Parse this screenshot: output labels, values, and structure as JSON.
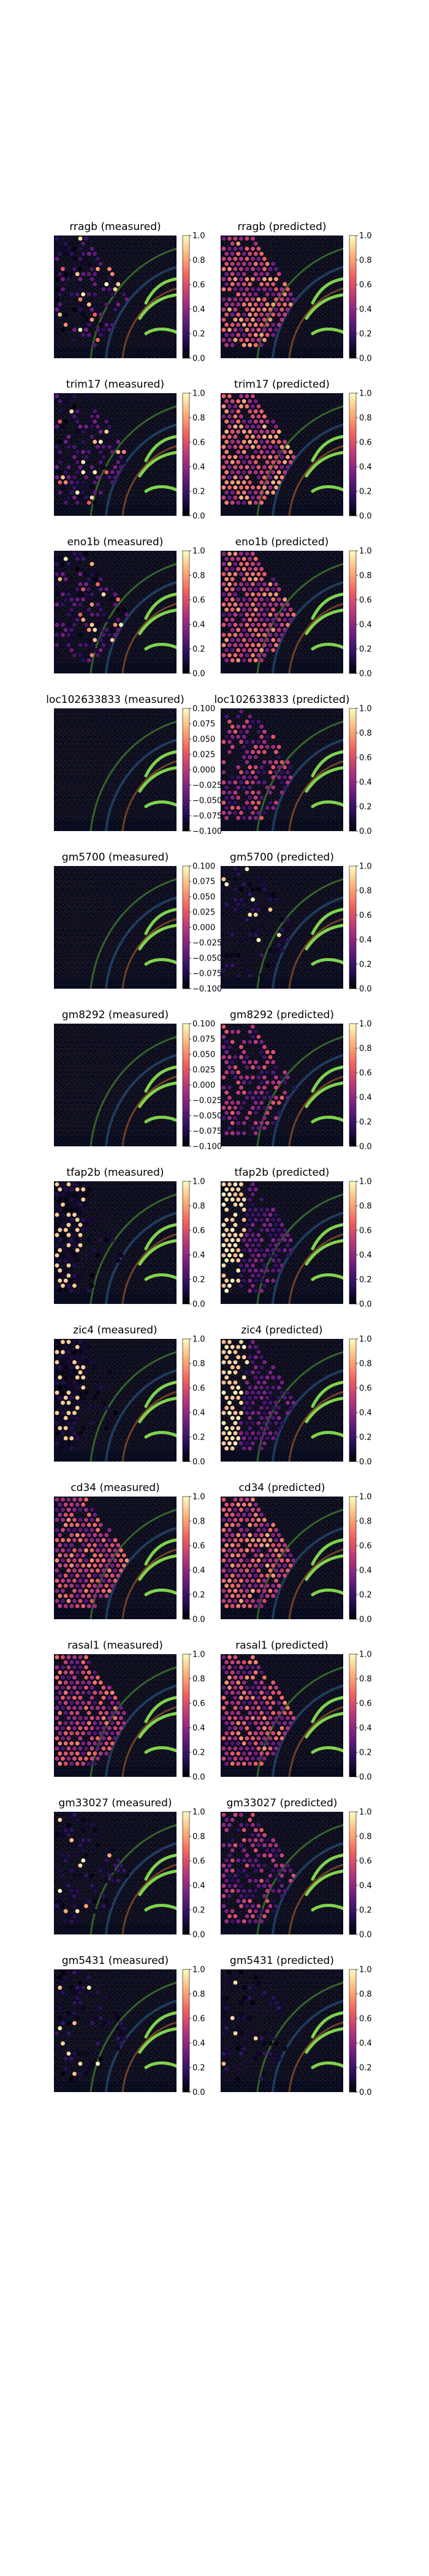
{
  "colormaps": {
    "gene_expression": [
      "#000004",
      "#2c115f",
      "#721f81",
      "#b73779",
      "#f1605d",
      "#feb078",
      "#fcfdbf"
    ],
    "spot_outline": "#a86a3a",
    "tissue_background": "#08091e",
    "tissue_texture": "#2a6a3c",
    "hippocampus_highlight": "#7ed84f"
  },
  "chart_data": [
    {
      "type": "heatmap",
      "title": "rragb (measured)",
      "colorbar": {
        "range": [
          0,
          1
        ],
        "ticks": [
          "0.0",
          "0.2",
          "0.4",
          "0.6",
          "0.8",
          "1.0"
        ]
      }
    },
    {
      "type": "heatmap",
      "title": "rragb (predicted)",
      "colorbar": {
        "range": [
          0,
          1
        ],
        "ticks": [
          "0.0",
          "0.2",
          "0.4",
          "0.6",
          "0.8",
          "1.0"
        ]
      }
    },
    {
      "type": "heatmap",
      "title": "trim17 (measured)",
      "colorbar": {
        "range": [
          0,
          1
        ],
        "ticks": [
          "0.0",
          "0.2",
          "0.4",
          "0.6",
          "0.8",
          "1.0"
        ]
      }
    },
    {
      "type": "heatmap",
      "title": "trim17 (predicted)",
      "colorbar": {
        "range": [
          0,
          1
        ],
        "ticks": [
          "0.0",
          "0.2",
          "0.4",
          "0.6",
          "0.8",
          "1.0"
        ]
      }
    },
    {
      "type": "heatmap",
      "title": "eno1b (measured)",
      "colorbar": {
        "range": [
          0,
          1
        ],
        "ticks": [
          "0.0",
          "0.2",
          "0.4",
          "0.6",
          "0.8",
          "1.0"
        ]
      }
    },
    {
      "type": "heatmap",
      "title": "eno1b (predicted)",
      "colorbar": {
        "range": [
          0,
          1
        ],
        "ticks": [
          "0.0",
          "0.2",
          "0.4",
          "0.6",
          "0.8",
          "1.0"
        ]
      }
    },
    {
      "type": "heatmap",
      "title": "loc102633833 (measured)",
      "colorbar": {
        "range": [
          -0.1,
          0.1
        ],
        "ticks": [
          "0.100",
          "0.075",
          "0.050",
          "0.025",
          "0.000",
          "−0.025",
          "−0.050",
          "−0.075",
          "−0.100"
        ]
      }
    },
    {
      "type": "heatmap",
      "title": "loc102633833 (predicted)",
      "colorbar": {
        "range": [
          0,
          1
        ],
        "ticks": [
          "0.0",
          "0.2",
          "0.4",
          "0.6",
          "0.8",
          "1.0"
        ]
      }
    },
    {
      "type": "heatmap",
      "title": "gm5700 (measured)",
      "colorbar": {
        "range": [
          -0.1,
          0.1
        ],
        "ticks": [
          "0.100",
          "0.075",
          "0.050",
          "0.025",
          "0.000",
          "−0.025",
          "−0.050",
          "−0.075",
          "−0.100"
        ]
      }
    },
    {
      "type": "heatmap",
      "title": "gm5700 (predicted)",
      "colorbar": {
        "range": [
          0,
          1
        ],
        "ticks": [
          "0.0",
          "0.2",
          "0.4",
          "0.6",
          "0.8",
          "1.0"
        ]
      }
    },
    {
      "type": "heatmap",
      "title": "gm8292 (measured)",
      "colorbar": {
        "range": [
          -0.1,
          0.1
        ],
        "ticks": [
          "0.100",
          "0.075",
          "0.050",
          "0.025",
          "0.000",
          "−0.025",
          "−0.050",
          "−0.075",
          "−0.100"
        ]
      }
    },
    {
      "type": "heatmap",
      "title": "gm8292 (predicted)",
      "colorbar": {
        "range": [
          0,
          1
        ],
        "ticks": [
          "0.0",
          "0.2",
          "0.4",
          "0.6",
          "0.8",
          "1.0"
        ]
      }
    },
    {
      "type": "heatmap",
      "title": "tfap2b (measured)",
      "colorbar": {
        "range": [
          0,
          1
        ],
        "ticks": [
          "0.0",
          "0.2",
          "0.4",
          "0.6",
          "0.8",
          "1.0"
        ]
      }
    },
    {
      "type": "heatmap",
      "title": "tfap2b (predicted)",
      "colorbar": {
        "range": [
          0,
          1
        ],
        "ticks": [
          "0.0",
          "0.2",
          "0.4",
          "0.6",
          "0.8",
          "1.0"
        ]
      }
    },
    {
      "type": "heatmap",
      "title": "zic4 (measured)",
      "colorbar": {
        "range": [
          0,
          1
        ],
        "ticks": [
          "0.0",
          "0.2",
          "0.4",
          "0.6",
          "0.8",
          "1.0"
        ]
      }
    },
    {
      "type": "heatmap",
      "title": "zic4 (predicted)",
      "colorbar": {
        "range": [
          0,
          1
        ],
        "ticks": [
          "0.0",
          "0.2",
          "0.4",
          "0.6",
          "0.8",
          "1.0"
        ]
      }
    },
    {
      "type": "heatmap",
      "title": "cd34 (measured)",
      "colorbar": {
        "range": [
          0,
          1
        ],
        "ticks": [
          "0.0",
          "0.2",
          "0.4",
          "0.6",
          "0.8",
          "1.0"
        ]
      }
    },
    {
      "type": "heatmap",
      "title": "cd34 (predicted)",
      "colorbar": {
        "range": [
          0,
          1
        ],
        "ticks": [
          "0.0",
          "0.2",
          "0.4",
          "0.6",
          "0.8",
          "1.0"
        ]
      }
    },
    {
      "type": "heatmap",
      "title": "rasal1 (measured)",
      "colorbar": {
        "range": [
          0,
          1
        ],
        "ticks": [
          "0.0",
          "0.2",
          "0.4",
          "0.6",
          "0.8",
          "1.0"
        ]
      }
    },
    {
      "type": "heatmap",
      "title": "rasal1 (predicted)",
      "colorbar": {
        "range": [
          0,
          1
        ],
        "ticks": [
          "0.0",
          "0.2",
          "0.4",
          "0.6",
          "0.8",
          "1.0"
        ]
      }
    },
    {
      "type": "heatmap",
      "title": "gm33027 (measured)",
      "colorbar": {
        "range": [
          0,
          1
        ],
        "ticks": [
          "0.0",
          "0.2",
          "0.4",
          "0.6",
          "0.8",
          "1.0"
        ]
      }
    },
    {
      "type": "heatmap",
      "title": "gm33027 (predicted)",
      "colorbar": {
        "range": [
          0,
          1
        ],
        "ticks": [
          "0.0",
          "0.2",
          "0.4",
          "0.6",
          "0.8",
          "1.0"
        ]
      }
    },
    {
      "type": "heatmap",
      "title": "gm5431 (measured)",
      "colorbar": {
        "range": [
          0,
          1
        ],
        "ticks": [
          "0.0",
          "0.2",
          "0.4",
          "0.6",
          "0.8",
          "1.0"
        ]
      }
    },
    {
      "type": "heatmap",
      "title": "gm5431 (predicted)",
      "colorbar": {
        "range": [
          0,
          1
        ],
        "ticks": [
          "0.0",
          "0.2",
          "0.4",
          "0.6",
          "0.8",
          "1.0"
        ]
      }
    }
  ]
}
